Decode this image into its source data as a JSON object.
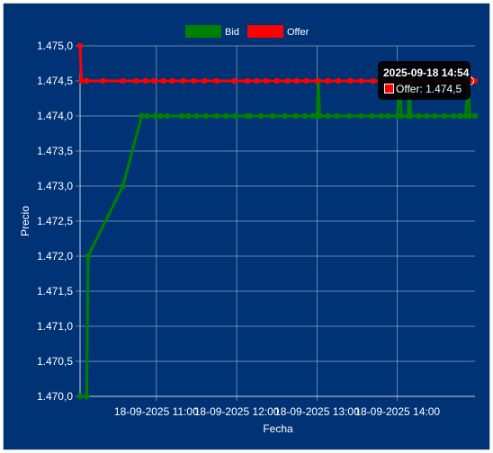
{
  "chart_data": {
    "type": "line",
    "xlabel": "Fecha",
    "ylabel": "Precio",
    "ylim": [
      1.47,
      1.475
    ],
    "y_ticks": [
      "1.470,0",
      "1.470,5",
      "1.471,0",
      "1.471,5",
      "1.472,0",
      "1.472,5",
      "1.473,0",
      "1.473,5",
      "1.474,0",
      "1.474,5",
      "1.475,0"
    ],
    "x_ticks": [
      {
        "label": "18-09-2025  11:00",
        "x": "2025-09-18 11:00"
      },
      {
        "label": "18-09-2025  12:00",
        "x": "2025-09-18 12:00"
      },
      {
        "label": "18-09-2025  13:00",
        "x": "2025-09-18 13:00"
      },
      {
        "label": "18-09-2025  14:00",
        "x": "2025-09-18 14:00"
      }
    ],
    "xlim": [
      "2025-09-18 10:03",
      "2025-09-18 14:58"
    ],
    "legend": {
      "position": "top"
    },
    "grid": true,
    "series": [
      {
        "name": "Bid",
        "color": "#008000",
        "points": [
          [
            "2025-09-18 10:03",
            1.47
          ],
          [
            "2025-09-18 10:08",
            1.47
          ],
          [
            "2025-09-18 10:09",
            1.472
          ],
          [
            "2025-09-18 10:35",
            1.473
          ],
          [
            "2025-09-18 10:49",
            1.474
          ],
          [
            "2025-09-18 10:53",
            1.474
          ],
          [
            "2025-09-18 10:59",
            1.474
          ],
          [
            "2025-09-18 11:03",
            1.474
          ],
          [
            "2025-09-18 11:08",
            1.474
          ],
          [
            "2025-09-18 11:19",
            1.474
          ],
          [
            "2025-09-18 11:24",
            1.474
          ],
          [
            "2025-09-18 11:30",
            1.474
          ],
          [
            "2025-09-18 11:37",
            1.474
          ],
          [
            "2025-09-18 11:45",
            1.474
          ],
          [
            "2025-09-18 11:52",
            1.474
          ],
          [
            "2025-09-18 11:59",
            1.474
          ],
          [
            "2025-09-18 12:08",
            1.474
          ],
          [
            "2025-09-18 12:10",
            1.474
          ],
          [
            "2025-09-18 12:18",
            1.474
          ],
          [
            "2025-09-18 12:27",
            1.474
          ],
          [
            "2025-09-18 12:36",
            1.474
          ],
          [
            "2025-09-18 12:44",
            1.474
          ],
          [
            "2025-09-18 12:51",
            1.474
          ],
          [
            "2025-09-18 12:57",
            1.474
          ],
          [
            "2025-09-18 13:00",
            1.474
          ],
          [
            "2025-09-18 13:01",
            1.4745
          ],
          [
            "2025-09-18 13:02",
            1.474
          ],
          [
            "2025-09-18 13:08",
            1.474
          ],
          [
            "2025-09-18 13:15",
            1.474
          ],
          [
            "2025-09-18 13:24",
            1.474
          ],
          [
            "2025-09-18 13:33",
            1.474
          ],
          [
            "2025-09-18 13:41",
            1.474
          ],
          [
            "2025-09-18 13:48",
            1.474
          ],
          [
            "2025-09-18 13:53",
            1.474
          ],
          [
            "2025-09-18 14:00",
            1.474
          ],
          [
            "2025-09-18 14:02",
            1.4745
          ],
          [
            "2025-09-18 14:03",
            1.474
          ],
          [
            "2025-09-18 14:08",
            1.474
          ],
          [
            "2025-09-18 14:09",
            1.4745
          ],
          [
            "2025-09-18 14:10",
            1.474
          ],
          [
            "2025-09-18 14:16",
            1.474
          ],
          [
            "2025-09-18 14:22",
            1.474
          ],
          [
            "2025-09-18 14:28",
            1.474
          ],
          [
            "2025-09-18 14:35",
            1.474
          ],
          [
            "2025-09-18 14:42",
            1.474
          ],
          [
            "2025-09-18 14:47",
            1.474
          ],
          [
            "2025-09-18 14:51",
            1.474
          ],
          [
            "2025-09-18 14:53",
            1.4745
          ],
          [
            "2025-09-18 14:54",
            1.474
          ],
          [
            "2025-09-18 14:58",
            1.474
          ]
        ]
      },
      {
        "name": "Offer",
        "color": "#ff0000",
        "points": [
          [
            "2025-09-18 10:03",
            1.475
          ],
          [
            "2025-09-18 10:04",
            1.4745
          ],
          [
            "2025-09-18 10:08",
            1.4745
          ],
          [
            "2025-09-18 10:20",
            1.4745
          ],
          [
            "2025-09-18 10:35",
            1.4745
          ],
          [
            "2025-09-18 10:45",
            1.4745
          ],
          [
            "2025-09-18 10:52",
            1.4745
          ],
          [
            "2025-09-18 10:58",
            1.4745
          ],
          [
            "2025-09-18 11:05",
            1.4745
          ],
          [
            "2025-09-18 11:12",
            1.4745
          ],
          [
            "2025-09-18 11:20",
            1.4745
          ],
          [
            "2025-09-18 11:28",
            1.4745
          ],
          [
            "2025-09-18 11:36",
            1.4745
          ],
          [
            "2025-09-18 11:45",
            1.4745
          ],
          [
            "2025-09-18 11:58",
            1.4745
          ],
          [
            "2025-09-18 12:08",
            1.4745
          ],
          [
            "2025-09-18 12:15",
            1.4745
          ],
          [
            "2025-09-18 12:22",
            1.4745
          ],
          [
            "2025-09-18 12:30",
            1.4745
          ],
          [
            "2025-09-18 12:38",
            1.4745
          ],
          [
            "2025-09-18 12:45",
            1.4745
          ],
          [
            "2025-09-18 12:52",
            1.4745
          ],
          [
            "2025-09-18 13:00",
            1.4745
          ],
          [
            "2025-09-18 13:08",
            1.4745
          ],
          [
            "2025-09-18 13:16",
            1.4745
          ],
          [
            "2025-09-18 13:25",
            1.4745
          ],
          [
            "2025-09-18 13:33",
            1.4745
          ],
          [
            "2025-09-18 13:42",
            1.4745
          ],
          [
            "2025-09-18 13:50",
            1.4745
          ],
          [
            "2025-09-18 13:58",
            1.4745
          ],
          [
            "2025-09-18 14:05",
            1.4745
          ],
          [
            "2025-09-18 14:12",
            1.4745
          ],
          [
            "2025-09-18 14:20",
            1.4745
          ],
          [
            "2025-09-18 14:28",
            1.4745
          ],
          [
            "2025-09-18 14:36",
            1.4745
          ],
          [
            "2025-09-18 14:44",
            1.4745
          ],
          [
            "2025-09-18 14:50",
            1.4745
          ],
          [
            "2025-09-18 14:54",
            1.4745
          ],
          [
            "2025-09-18 14:58",
            1.4745
          ]
        ]
      }
    ],
    "tooltip": {
      "title": "2025-09-18 14:54",
      "series": "Offer",
      "x": "2025-09-18 14:54",
      "y": 1.4745,
      "text": "Offer: 1.474,5"
    }
  }
}
